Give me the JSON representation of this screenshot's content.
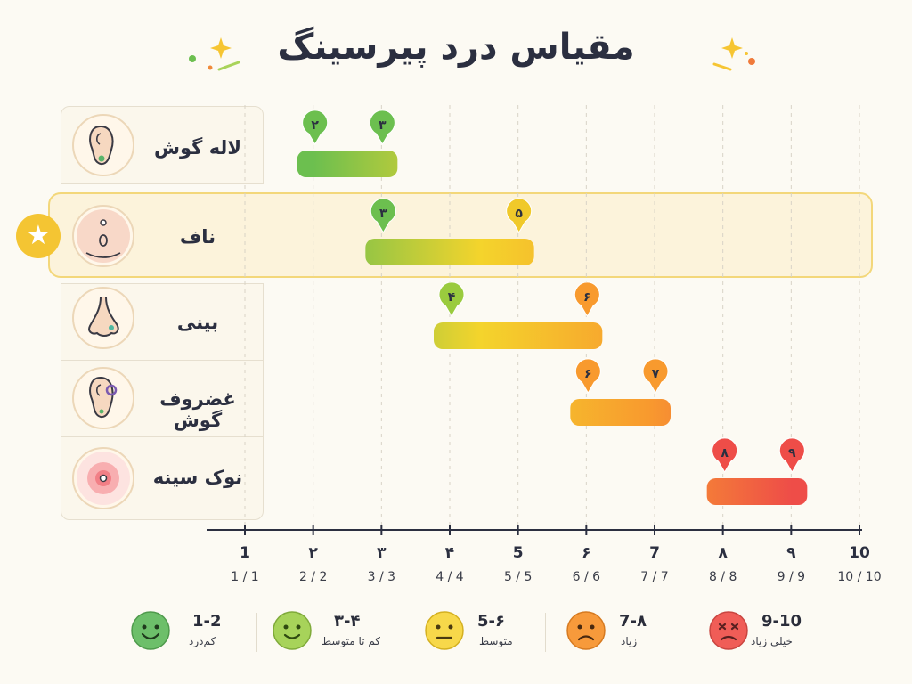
{
  "title": "مقیاس درد پیرسینگ",
  "chart_data": {
    "type": "range-bar",
    "xlim": [
      1,
      10
    ],
    "x_ticks": [
      {
        "value": 1,
        "label": "1",
        "sublabel": "1 / 1"
      },
      {
        "value": 2,
        "label": "۲",
        "sublabel": "2 / 2"
      },
      {
        "value": 3,
        "label": "۳",
        "sublabel": "3 / 3"
      },
      {
        "value": 4,
        "label": "۴",
        "sublabel": "4 / 4"
      },
      {
        "value": 5,
        "label": "5",
        "sublabel": "5 / 5"
      },
      {
        "value": 6,
        "label": "۶",
        "sublabel": "6 / 6"
      },
      {
        "value": 7,
        "label": "7",
        "sublabel": "7 / 7"
      },
      {
        "value": 8,
        "label": "۸",
        "sublabel": "8 / 8"
      },
      {
        "value": 9,
        "label": "۹",
        "sublabel": "9 / 9"
      },
      {
        "value": 10,
        "label": "10",
        "sublabel": "10 / 10"
      }
    ],
    "rows": [
      {
        "category": "لاله گوش",
        "icon": "earlobe-icon",
        "min": 2,
        "max": 3,
        "min_label": "۲",
        "max_label": "۳",
        "highlighted": false
      },
      {
        "category": "ناف",
        "icon": "navel-icon",
        "min": 3,
        "max": 5,
        "min_label": "۳",
        "max_label": "۵",
        "highlighted": true
      },
      {
        "category": "بینی",
        "icon": "nose-icon",
        "min": 4,
        "max": 6,
        "min_label": "۴",
        "max_label": "۶",
        "highlighted": false
      },
      {
        "category": "غضروف گوش",
        "icon": "ear-cartilage-icon",
        "min": 6,
        "max": 7,
        "min_label": "۶",
        "max_label": "۷",
        "highlighted": false
      },
      {
        "category": "نوک سینه",
        "icon": "nipple-icon",
        "min": 8,
        "max": 9,
        "min_label": "۸",
        "max_label": "۹",
        "highlighted": false
      }
    ]
  },
  "legend": [
    {
      "range": "9-10",
      "text": "خیلی زیاد",
      "color": "#f05d57",
      "face": "dizzy-face-icon"
    },
    {
      "range": "7-۸",
      "text": "زیاد",
      "color": "#f79a3b",
      "face": "sad-face-icon"
    },
    {
      "range": "5-۶",
      "text": "متوسط",
      "color": "#f7d84a",
      "face": "neutral-face-icon"
    },
    {
      "range": "۳-۴",
      "text": "کم تا متوسط",
      "color": "#a7d35a",
      "face": "smile-face-icon"
    },
    {
      "range": "1-2",
      "text": "کم‌درد",
      "color": "#6dbf6a",
      "face": "happy-face-icon"
    }
  ],
  "colors": {
    "low": "#6cbf4f",
    "mid": "#f4d42c",
    "high": "#f89a2e",
    "very_high": "#ee4d48",
    "highlight": "#f3d77a"
  }
}
